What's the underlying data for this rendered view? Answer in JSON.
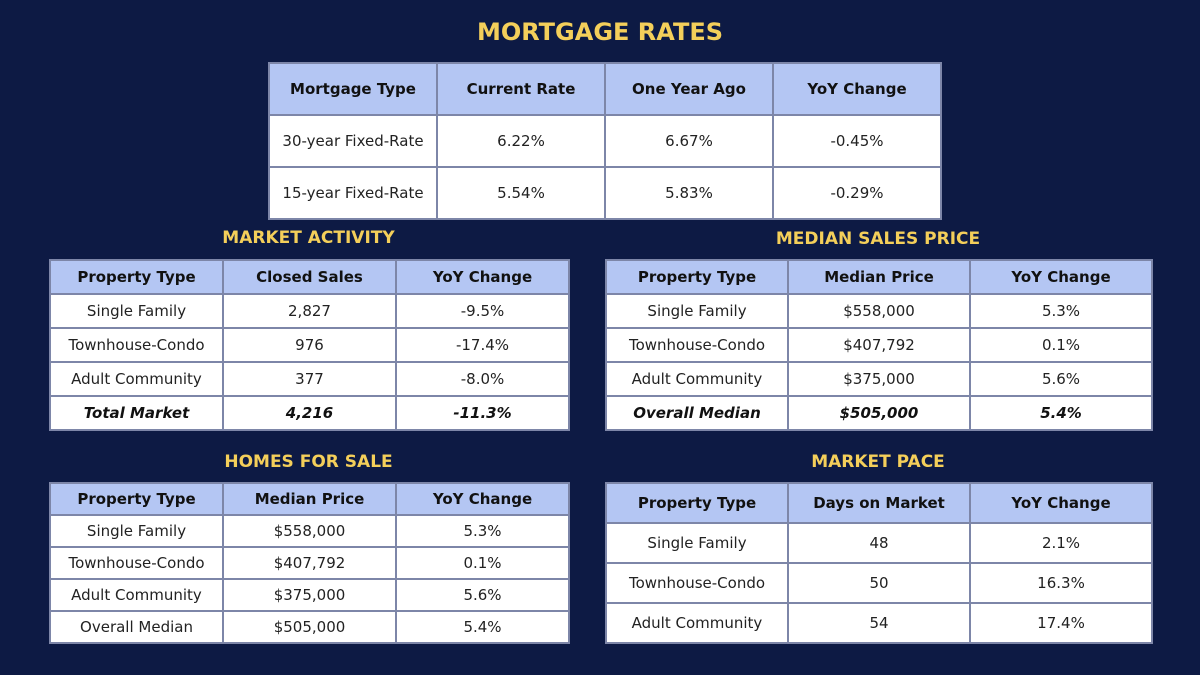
{
  "main_title": "MORTGAGE RATES",
  "mortgage": {
    "headers": [
      "Mortgage Type",
      "Current Rate",
      "One Year Ago",
      "YoY Change"
    ],
    "rows": [
      [
        "30-year Fixed-Rate",
        "6.22%",
        "6.67%",
        "-0.45%"
      ],
      [
        "15-year Fixed-Rate",
        "5.54%",
        "5.83%",
        "-0.29%"
      ]
    ]
  },
  "market_activity": {
    "title": "MARKET ACTIVITY",
    "headers": [
      "Property Type",
      "Closed Sales",
      "YoY Change"
    ],
    "rows": [
      [
        "Single Family",
        "2,827",
        "-9.5%"
      ],
      [
        "Townhouse-Condo",
        "976",
        "-17.4%"
      ],
      [
        "Adult Community",
        "377",
        "-8.0%"
      ],
      [
        "Total Market",
        "4,216",
        "-11.3%"
      ]
    ]
  },
  "median_sales_price": {
    "title": "MEDIAN SALES PRICE",
    "headers": [
      "Property Type",
      "Median Price",
      "YoY Change"
    ],
    "rows": [
      [
        "Single Family",
        "$558,000",
        "5.3%"
      ],
      [
        "Townhouse-Condo",
        "$407,792",
        "0.1%"
      ],
      [
        "Adult Community",
        "$375,000",
        "5.6%"
      ],
      [
        "Overall Median",
        "$505,000",
        "5.4%"
      ]
    ]
  },
  "homes_for_sale": {
    "title": "HOMES FOR SALE",
    "headers": [
      "Property Type",
      "Median Price",
      "YoY Change"
    ],
    "rows": [
      [
        "Single Family",
        "$558,000",
        "5.3%"
      ],
      [
        "Townhouse-Condo",
        "$407,792",
        "0.1%"
      ],
      [
        "Adult Community",
        "$375,000",
        "5.6%"
      ],
      [
        "Overall Median",
        "$505,000",
        "5.4%"
      ]
    ]
  },
  "market_pace": {
    "title": "MARKET PACE",
    "headers": [
      "Property Type",
      "Days on Market",
      "YoY Change"
    ],
    "rows": [
      [
        "Single Family",
        "48",
        "2.1%"
      ],
      [
        "Townhouse-Condo",
        "50",
        "16.3%"
      ],
      [
        "Adult Community",
        "54",
        "17.4%"
      ]
    ]
  }
}
